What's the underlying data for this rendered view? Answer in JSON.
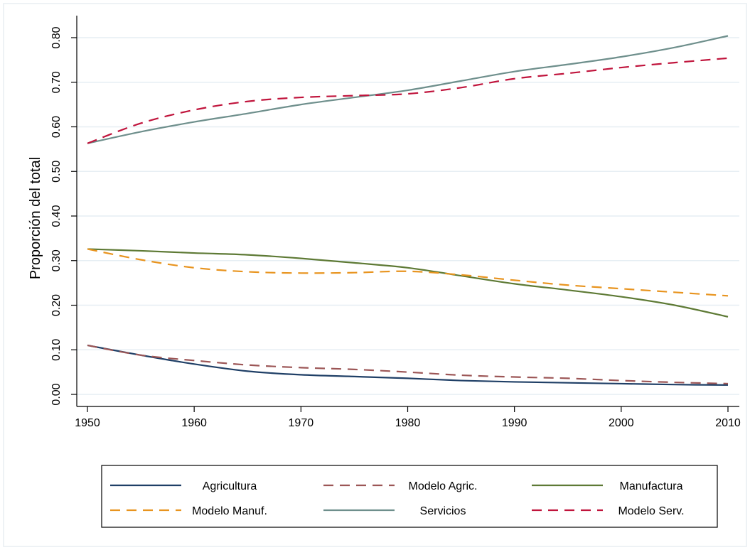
{
  "chart_data": {
    "type": "line",
    "title": "",
    "xlabel": "",
    "ylabel": "Proporción del total",
    "xlim": [
      1950,
      2010
    ],
    "ylim": [
      0,
      0.8
    ],
    "xticks": [
      "1950",
      "1960",
      "1970",
      "1980",
      "1990",
      "2000",
      "2010"
    ],
    "yticks": [
      "0.00",
      "0.10",
      "0.20",
      "0.30",
      "0.40",
      "0.50",
      "0.60",
      "0.70",
      "0.80"
    ],
    "grid": true,
    "legend_position": "bottom",
    "x": [
      1950,
      1955,
      1960,
      1965,
      1970,
      1975,
      1980,
      1985,
      1990,
      1995,
      2000,
      2005,
      2010
    ],
    "series": [
      {
        "name": "Agricultura",
        "color": "#1f3f66",
        "dash": "solid",
        "values": [
          0.11,
          0.088,
          0.068,
          0.052,
          0.044,
          0.04,
          0.036,
          0.031,
          0.028,
          0.026,
          0.024,
          0.022,
          0.021
        ]
      },
      {
        "name": "Modelo Agric.",
        "color": "#9c5656",
        "dash": "dashed",
        "values": [
          0.11,
          0.088,
          0.076,
          0.066,
          0.06,
          0.056,
          0.05,
          0.043,
          0.039,
          0.036,
          0.031,
          0.027,
          0.024
        ]
      },
      {
        "name": "Manufactura",
        "color": "#5e7a35",
        "dash": "solid",
        "values": [
          0.326,
          0.322,
          0.317,
          0.313,
          0.305,
          0.295,
          0.284,
          0.266,
          0.248,
          0.234,
          0.219,
          0.2,
          0.174
        ]
      },
      {
        "name": "Modelo Manuf.",
        "color": "#e8941f",
        "dash": "dashed",
        "values": [
          0.326,
          0.302,
          0.284,
          0.275,
          0.272,
          0.273,
          0.276,
          0.268,
          0.256,
          0.245,
          0.237,
          0.229,
          0.221
        ]
      },
      {
        "name": "Servicios",
        "color": "#6e8f8c",
        "dash": "solid",
        "values": [
          0.563,
          0.589,
          0.611,
          0.63,
          0.65,
          0.666,
          0.682,
          0.703,
          0.724,
          0.74,
          0.757,
          0.778,
          0.804
        ]
      },
      {
        "name": "Modelo Serv.",
        "color": "#c0143c",
        "dash": "dashed",
        "values": [
          0.563,
          0.608,
          0.638,
          0.657,
          0.666,
          0.67,
          0.674,
          0.688,
          0.708,
          0.72,
          0.733,
          0.744,
          0.754
        ]
      }
    ]
  }
}
